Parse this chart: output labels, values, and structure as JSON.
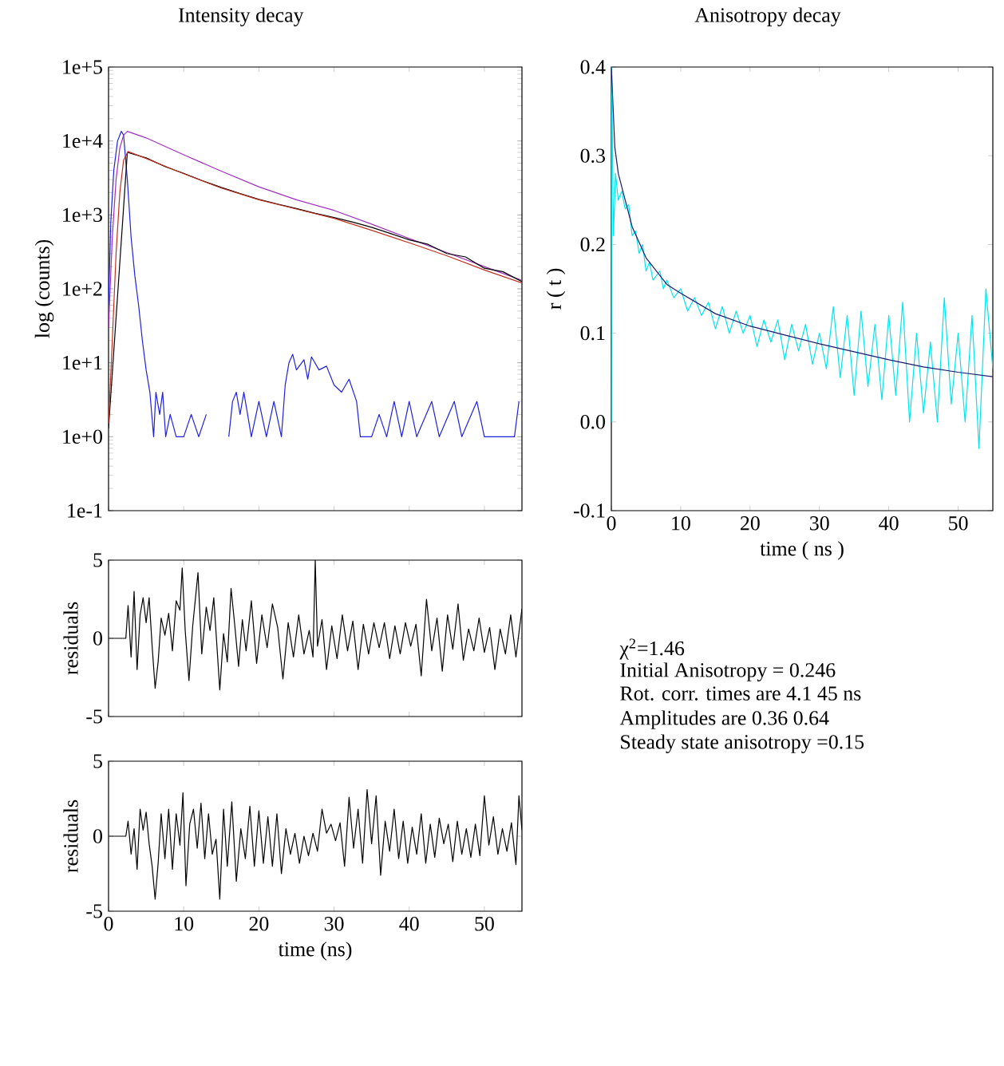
{
  "chart_data": [
    {
      "type": "line",
      "title": "Intensity decay",
      "ylabel": "log (counts)",
      "log": "y",
      "xlim": [
        0,
        55
      ],
      "ylim": [
        0.1,
        100000
      ],
      "xticks": [
        0,
        10,
        20,
        30,
        40,
        50
      ],
      "yticks": [
        {
          "value": 0.1,
          "label": "1e-1"
        },
        {
          "value": 1,
          "label": "1e+0"
        },
        {
          "value": 10,
          "label": "1e+1"
        },
        {
          "value": 100,
          "label": "1e+2"
        },
        {
          "value": 1000,
          "label": "1e+3"
        },
        {
          "value": 10000,
          "label": "1e+4"
        },
        {
          "value": 100000,
          "label": "1e+5"
        }
      ],
      "tick_labels": "y",
      "series": [
        {
          "color": "#2020e0",
          "x": [
            0,
            0.3,
            0.7,
            1.2,
            1.7,
            2.0,
            2.5,
            3,
            3.5,
            4,
            4.5,
            5,
            5.5,
            6,
            6.3,
            6.8,
            7.2,
            7.6,
            8.2,
            9,
            10,
            11,
            12,
            13,
            14,
            16,
            16.5,
            17,
            17.5,
            18,
            19,
            20,
            21,
            22,
            23,
            23.5,
            24,
            24.5,
            25,
            26,
            26.5,
            27,
            28,
            29,
            30,
            31,
            32,
            33,
            33.5,
            35,
            36,
            37,
            38,
            39,
            40,
            41,
            43,
            44,
            46,
            47,
            49,
            50,
            54,
            54.6
          ],
          "values": [
            60,
            800,
            4000,
            10000,
            13500,
            12000,
            3000,
            500,
            150,
            60,
            20,
            8,
            4,
            1,
            4,
            2,
            4,
            1,
            2,
            1,
            1,
            2,
            1,
            2,
            null,
            1,
            3,
            4,
            2,
            4,
            1,
            3,
            1,
            3,
            1,
            5,
            10,
            13,
            8,
            11,
            6,
            12,
            8,
            9,
            5,
            4,
            6,
            3,
            1,
            1,
            2,
            1,
            3,
            1,
            3,
            1,
            3,
            1,
            3,
            1,
            3,
            1,
            1,
            3
          ]
        },
        {
          "color": "#a030c0",
          "x": [
            0,
            0.5,
            1,
            1.5,
            2,
            2.5,
            5,
            10,
            15,
            20,
            25,
            30,
            35,
            40,
            45,
            50,
            55
          ],
          "values": [
            30,
            500,
            3000,
            8000,
            12000,
            13500,
            11000,
            6500,
            3900,
            2400,
            1600,
            1150,
            750,
            480,
            310,
            200,
            130
          ]
        },
        {
          "color": "#000000",
          "x": [
            0,
            2.5,
            5,
            7.5,
            10,
            12.5,
            15,
            17.5,
            20,
            22.5,
            25,
            27.5,
            30,
            32.5,
            35,
            37.5,
            40,
            42.5,
            45,
            47.5,
            50,
            52.5,
            55
          ],
          "values": [
            1.3,
            7000,
            5900,
            4500,
            3650,
            2900,
            2350,
            1950,
            1620,
            1400,
            1220,
            1050,
            920,
            800,
            680,
            560,
            460,
            400,
            300,
            270,
            190,
            170,
            125
          ]
        },
        {
          "color": "#c03020",
          "x": [
            0,
            0.5,
            1,
            1.5,
            2,
            2.6,
            5,
            10,
            15,
            20,
            25,
            30,
            35,
            40,
            45,
            50,
            55
          ],
          "values": [
            1.5,
            20,
            300,
            2000,
            5500,
            7200,
            5800,
            3600,
            2300,
            1600,
            1200,
            900,
            620,
            420,
            280,
            180,
            120
          ]
        }
      ]
    },
    {
      "type": "line",
      "title": "Anisotropy decay",
      "xlabel": "time ( ns )",
      "ylabel": "r ( t )",
      "xlim": [
        0,
        55
      ],
      "ylim": [
        -0.1,
        0.4
      ],
      "xticks": [
        0,
        10,
        20,
        30,
        40,
        50
      ],
      "yticks": [
        -0.1,
        {
          "value": 0,
          "label": "0.0"
        },
        0.1,
        0.2,
        0.3,
        0.4
      ],
      "series": [
        {
          "color": "#00e5ee",
          "x": [
            0,
            0.05,
            0.3,
            0.6,
            1,
            1.5,
            2,
            2.5,
            3,
            3.5,
            4,
            4.5,
            5,
            5.5,
            6,
            7,
            7.5,
            8,
            9,
            10,
            11,
            12,
            13,
            14,
            15,
            16,
            17,
            18,
            19,
            20,
            21,
            22,
            23,
            24,
            25,
            26,
            27,
            28,
            29,
            30,
            31,
            32,
            33,
            34,
            35,
            36,
            37,
            38,
            39,
            40,
            41,
            42,
            43,
            44,
            45,
            46,
            47,
            48,
            49,
            50,
            51,
            52,
            53,
            54,
            55
          ],
          "values": [
            0.0,
            0.4,
            0.21,
            0.28,
            0.25,
            0.26,
            0.24,
            0.245,
            0.21,
            0.215,
            0.19,
            0.2,
            0.17,
            0.18,
            0.16,
            0.17,
            0.15,
            0.16,
            0.14,
            0.15,
            0.125,
            0.14,
            0.12,
            0.135,
            0.105,
            0.13,
            0.1,
            0.125,
            0.1,
            0.12,
            0.085,
            0.115,
            0.09,
            0.115,
            0.07,
            0.11,
            0.08,
            0.11,
            0.065,
            0.1,
            0.06,
            0.13,
            0.05,
            0.12,
            0.03,
            0.125,
            0.04,
            0.11,
            0.025,
            0.12,
            0.03,
            0.135,
            0.0,
            0.1,
            0.01,
            0.09,
            0.0,
            0.14,
            0.02,
            0.1,
            0.0,
            0.12,
            -0.03,
            0.15,
            0.06
          ]
        },
        {
          "color": "#1a1a6e",
          "x": [
            0,
            0.5,
            1,
            2,
            3,
            5,
            8,
            10,
            15,
            20,
            25,
            30,
            35,
            40,
            45,
            50,
            55
          ],
          "values": [
            0.4,
            0.31,
            0.28,
            0.25,
            0.22,
            0.185,
            0.155,
            0.145,
            0.122,
            0.108,
            0.098,
            0.088,
            0.079,
            0.07,
            0.062,
            0.056,
            0.051
          ]
        }
      ]
    },
    {
      "type": "line",
      "ylabel": "residuals",
      "xlim": [
        0,
        55
      ],
      "ylim": [
        -5,
        5
      ],
      "xticks": [
        0,
        10,
        20,
        30,
        40,
        50
      ],
      "yticks": [
        -5,
        0,
        5
      ],
      "tick_labels": "y",
      "series": [
        {
          "color": "#000000",
          "x": [
            0,
            2.3,
            2.6,
            3.0,
            3.4,
            3.8,
            4.2,
            4.6,
            5.0,
            5.4,
            5.8,
            6.2,
            6.6,
            7.0,
            7.5,
            8.0,
            8.5,
            9.0,
            9.5,
            9.8,
            10.2,
            10.7,
            11.2,
            11.9,
            12.4,
            13.0,
            13.5,
            14.0,
            14.8,
            15.3,
            15.8,
            16.3,
            16.8,
            17.3,
            17.8,
            18.3,
            19.0,
            19.7,
            20.4,
            21.1,
            21.8,
            22.5,
            23.2,
            23.9,
            24.6,
            25.3,
            26.0,
            26.7,
            27.2,
            27.5,
            27.8,
            28.4,
            29.0,
            29.7,
            30.4,
            31.1,
            31.8,
            32.5,
            33.2,
            33.9,
            34.6,
            35.3,
            36.0,
            36.7,
            37.4,
            38.1,
            38.8,
            39.5,
            40.2,
            40.9,
            41.6,
            42.3,
            43.0,
            43.7,
            44.4,
            45.1,
            45.8,
            46.5,
            47.2,
            47.9,
            48.6,
            49.3,
            50.0,
            50.7,
            51.4,
            52.1,
            52.8,
            53.5,
            54.2,
            55
          ],
          "values": [
            0,
            0,
            2.1,
            -1.2,
            3.0,
            -2.0,
            1.5,
            2.6,
            1.0,
            2.6,
            -0.5,
            -3.2,
            -1.5,
            1.3,
            0.2,
            1.6,
            -0.8,
            2.4,
            1.8,
            4.5,
            0.5,
            -2.7,
            0.8,
            4.2,
            -1.0,
            2.0,
            0.5,
            2.6,
            -3.3,
            0.3,
            -1.5,
            3.2,
            0.8,
            -1.8,
            1.2,
            -0.8,
            2.4,
            -1.6,
            1.5,
            -0.6,
            2.2,
            0.7,
            -2.6,
            1.0,
            -1.2,
            1.5,
            -1.0,
            0.5,
            -1.2,
            5.0,
            -0.5,
            1.2,
            -2.0,
            0.8,
            -1.3,
            1.5,
            -0.8,
            1.1,
            -2.0,
            0.9,
            -1.0,
            1.0,
            -0.6,
            1.0,
            -1.3,
            0.8,
            -1.0,
            1.0,
            -0.5,
            0.9,
            -2.4,
            2.5,
            -0.8,
            1.3,
            -2.1,
            1.5,
            -0.7,
            2.2,
            -1.4,
            0.6,
            -0.8,
            1.3,
            -0.9,
            0.7,
            -2.0,
            0.6,
            -1.0,
            1.5,
            -1.2,
            1.9
          ]
        }
      ]
    },
    {
      "type": "line",
      "xlabel": "time (ns)",
      "ylabel": "residuals",
      "xlim": [
        0,
        55
      ],
      "ylim": [
        -5,
        5
      ],
      "xticks": [
        0,
        10,
        20,
        30,
        40,
        50
      ],
      "yticks": [
        -5,
        0,
        5
      ],
      "series": [
        {
          "color": "#000000",
          "x": [
            0,
            2.3,
            2.6,
            3.0,
            3.4,
            3.8,
            4.2,
            4.6,
            5.0,
            5.4,
            5.8,
            6.2,
            6.6,
            7.0,
            7.5,
            8.0,
            8.5,
            9.0,
            9.5,
            9.9,
            10.3,
            10.8,
            11.3,
            11.8,
            12.3,
            12.8,
            13.3,
            13.8,
            14.3,
            14.8,
            15.3,
            15.8,
            16.4,
            17.0,
            17.6,
            18.2,
            18.8,
            19.4,
            20.0,
            20.6,
            21.2,
            21.8,
            22.4,
            23.0,
            23.6,
            24.2,
            24.8,
            25.4,
            26.0,
            26.6,
            27.2,
            27.8,
            28.4,
            29.0,
            29.6,
            30.2,
            30.8,
            31.4,
            32.0,
            32.6,
            33.2,
            33.8,
            34.4,
            35.0,
            35.6,
            36.2,
            36.8,
            37.4,
            38.0,
            38.6,
            39.2,
            39.8,
            40.4,
            41.0,
            41.6,
            42.2,
            42.8,
            43.4,
            44.0,
            44.6,
            45.2,
            45.8,
            46.4,
            47.0,
            47.6,
            48.2,
            48.8,
            49.4,
            50.0,
            50.6,
            51.2,
            51.8,
            52.4,
            53.0,
            53.6,
            54.2,
            54.6,
            55
          ],
          "values": [
            0,
            0,
            1.0,
            -1.2,
            0.5,
            -2.2,
            1.8,
            0.4,
            1.6,
            -0.5,
            -2.0,
            -4.2,
            -1.8,
            1.5,
            -1.5,
            1.8,
            -2.2,
            1.5,
            -0.6,
            2.9,
            -3.3,
            0.8,
            1.8,
            -0.8,
            2.2,
            -1.5,
            1.5,
            -1.2,
            -0.2,
            -4.2,
            1.8,
            -2.0,
            2.3,
            -3.0,
            0.5,
            -1.5,
            2.0,
            -2.0,
            1.7,
            -1.8,
            1.3,
            -2.0,
            1.5,
            -2.5,
            0.5,
            -1.2,
            0.2,
            -1.8,
            0.0,
            -1.3,
            0.2,
            -1.0,
            1.8,
            0.2,
            0.8,
            -0.3,
            0.9,
            -2.0,
            2.6,
            -0.8,
            1.8,
            -1.8,
            3.1,
            -0.5,
            2.7,
            -2.6,
            1.0,
            -1.0,
            1.8,
            -1.5,
            1.0,
            -1.8,
            0.6,
            -1.2,
            1.5,
            -1.8,
            0.8,
            -1.4,
            1.2,
            -0.5,
            0.8,
            -1.7,
            1.0,
            -1.2,
            0.5,
            -1.4,
            0.8,
            -1.3,
            2.7,
            -0.6,
            1.3,
            -1.2,
            0.5,
            -1.0,
            0.9,
            -1.9,
            2.7,
            0.4
          ]
        }
      ]
    },
    {
      "type": "other",
      "annotations": [
        "χ$^{2}$=1.46",
        "Initial Anisotropy = 0.246",
        "Rot. corr. times are  4.1 45 ns",
        "Amplitudes are  0.36 0.64",
        "Steady state anisotropy =0.15"
      ]
    }
  ]
}
